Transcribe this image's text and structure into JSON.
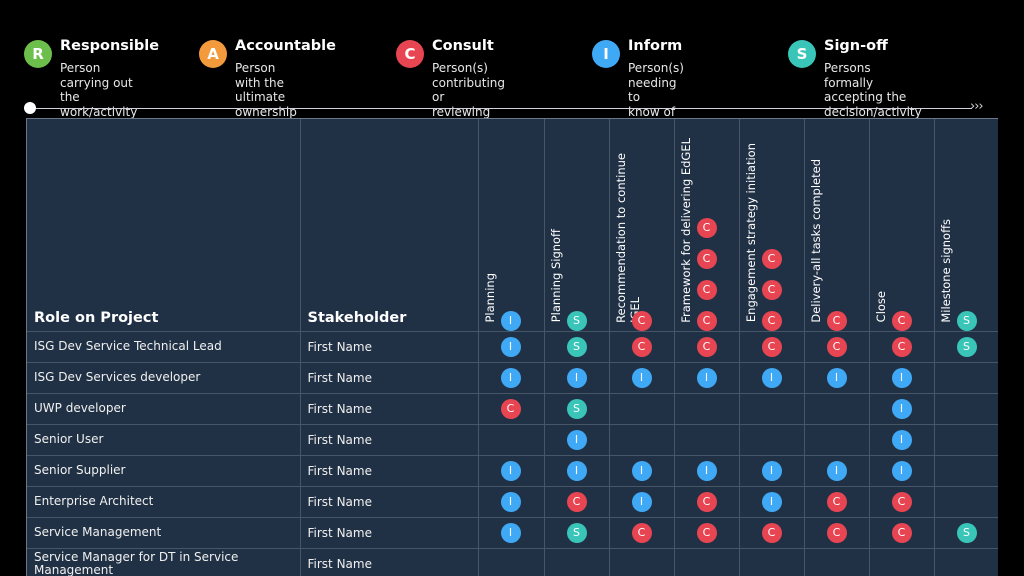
{
  "colors": {
    "R": "#6dbf4b",
    "A": "#f39a3d",
    "C": "#e84552",
    "I": "#3fa9f5",
    "S": "#39c5b8"
  },
  "legend": [
    {
      "key": "R",
      "title": "Responsible",
      "desc": "Person carrying out\nthe work/activity"
    },
    {
      "key": "A",
      "title": "Accountable",
      "desc": "Person with the ultimate\nownership - has decision\nauthority"
    },
    {
      "key": "C",
      "title": "Consult",
      "desc": "Person(s) contributing or\nreviewing the activity"
    },
    {
      "key": "I",
      "title": "Inform",
      "desc": "Person(s) needing to\nknow of the activity"
    },
    {
      "key": "S",
      "title": "Sign-off",
      "desc": "Persons formally\naccepting the\ndecision/activity"
    }
  ],
  "timeline": {
    "arrows": "›››"
  },
  "table": {
    "headers": {
      "role": "Role on Project",
      "stakeholder": "Stakeholder"
    },
    "activities": [
      {
        "label": "Planning",
        "header_badges": [
          "I"
        ]
      },
      {
        "label": "Planning Signoff",
        "header_badges": [
          "S"
        ]
      },
      {
        "label": "Recommendation to continue\nIGEL",
        "header_badges": [
          "C"
        ]
      },
      {
        "label": "Framework for delivering EdGEL",
        "header_badges": [
          "C",
          "C",
          "C",
          "C"
        ]
      },
      {
        "label": "Engagement strategy initiation",
        "header_badges": [
          "C",
          "C",
          "C"
        ]
      },
      {
        "label": "Delivery-all tasks completed",
        "header_badges": [
          "C"
        ]
      },
      {
        "label": "Close",
        "header_badges": [
          "C"
        ]
      },
      {
        "label": "Milestone signoffs",
        "header_badges": [
          "S"
        ]
      }
    ],
    "rows": [
      {
        "role": "ISG Dev Service Technical Lead",
        "stakeholder": "First Name",
        "cells": [
          "I",
          "S",
          "C",
          "C",
          "C",
          "C",
          "C",
          "S"
        ]
      },
      {
        "role": "ISG Dev Services developer",
        "stakeholder": "First Name",
        "cells": [
          "I",
          "I",
          "I",
          "I",
          "I",
          "I",
          "I",
          ""
        ]
      },
      {
        "role": "UWP developer",
        "stakeholder": "First Name",
        "cells": [
          "C",
          "S",
          "",
          "",
          "",
          "",
          "I",
          ""
        ]
      },
      {
        "role": "Senior User",
        "stakeholder": "First Name",
        "cells": [
          "",
          "I",
          "",
          "",
          "",
          "",
          "I",
          ""
        ]
      },
      {
        "role": "Senior Supplier",
        "stakeholder": "First Name",
        "cells": [
          "I",
          "I",
          "I",
          "I",
          "I",
          "I",
          "I",
          ""
        ]
      },
      {
        "role": "Enterprise Architect",
        "stakeholder": "First Name",
        "cells": [
          "I",
          "C",
          "I",
          "C",
          "I",
          "C",
          "C",
          ""
        ]
      },
      {
        "role": "Service Management",
        "stakeholder": "First Name",
        "cells": [
          "I",
          "S",
          "C",
          "C",
          "C",
          "C",
          "C",
          "S"
        ]
      },
      {
        "role": "Service Manager for DT in Service Management",
        "stakeholder": "First Name",
        "cells": [
          "",
          "",
          "",
          "",
          "",
          "",
          "",
          ""
        ]
      }
    ]
  }
}
